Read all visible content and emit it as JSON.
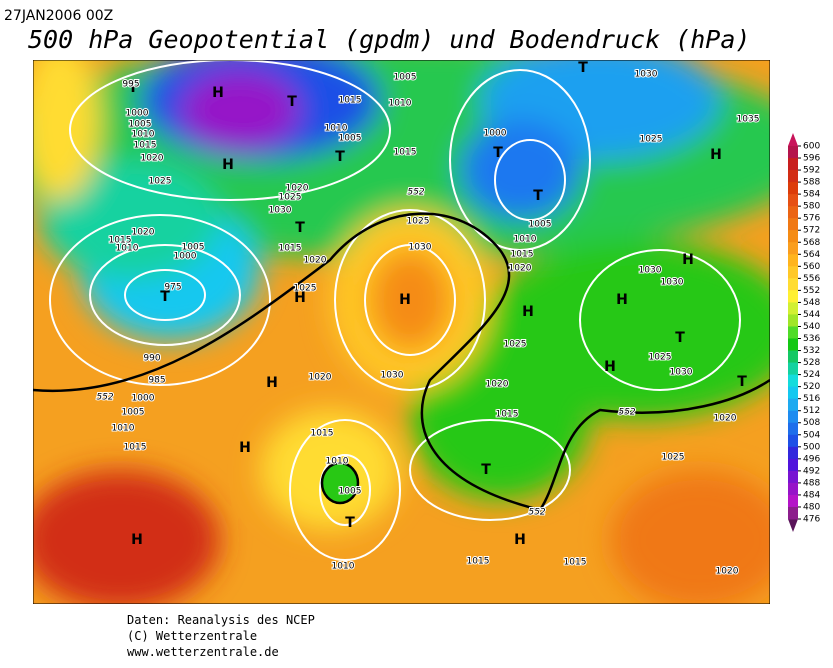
{
  "header": {
    "date": "27JAN2006 00Z",
    "title": "500 hPa Geopotential (gpdm) und Bodendruck (hPa)"
  },
  "colorbar": {
    "ticks": [
      600,
      596,
      592,
      588,
      584,
      580,
      576,
      572,
      568,
      564,
      560,
      556,
      552,
      548,
      544,
      540,
      536,
      532,
      528,
      524,
      520,
      516,
      512,
      508,
      504,
      500,
      496,
      492,
      488,
      484,
      480,
      476
    ],
    "colors": [
      "#b4144b",
      "#c81e1e",
      "#d22d14",
      "#dc3c0a",
      "#e65014",
      "#eb6414",
      "#f07814",
      "#f58c14",
      "#fa9e1e",
      "#ffb41e",
      "#ffc828",
      "#ffdc32",
      "#fff032",
      "#d2f032",
      "#a0e628",
      "#50dc28",
      "#14c814",
      "#14c864",
      "#14d2a0",
      "#14dcdc",
      "#14c8f0",
      "#1eaaf0",
      "#1e8cf0",
      "#1e6eeb",
      "#1e50e6",
      "#3228dc",
      "#5014dc",
      "#7814d2",
      "#9614c8",
      "#b414c8",
      "#8c1e8c"
    ]
  },
  "map_labels": [
    "T",
    "H",
    "T",
    "H",
    "T",
    "T",
    "T",
    "T",
    "H",
    "T",
    "H",
    "H",
    "H",
    "T",
    "H",
    "H",
    "T",
    "H",
    "H",
    "H",
    "T",
    "T",
    "H",
    "H",
    "T",
    "995",
    "1000",
    "1005",
    "1010",
    "1015",
    "1020",
    "1025",
    "1005",
    "1010",
    "1015",
    "1010",
    "1005",
    "1015",
    "1020",
    "1025",
    "1030",
    "1015",
    "1020",
    "1025",
    "1020",
    "1015",
    "1010",
    "1005",
    "1000",
    "975",
    "990",
    "985",
    "1000",
    "1005",
    "1010",
    "1015",
    "1025",
    "1030",
    "1030",
    "1020",
    "1025",
    "1020",
    "1015",
    "1015",
    "1010",
    "1005",
    "1000",
    "1005",
    "1010",
    "1015",
    "1020",
    "1030",
    "1025",
    "1030",
    "1030",
    "1025",
    "1030",
    "1020",
    "1025",
    "1015",
    "1015",
    "1010",
    "1020",
    "1035",
    "552",
    "552",
    "552",
    "552"
  ],
  "footer": [
    "Daten: Reanalysis des NCEP",
    "(C) Wetterzentrale",
    "www.wetterzentrale.de"
  ]
}
